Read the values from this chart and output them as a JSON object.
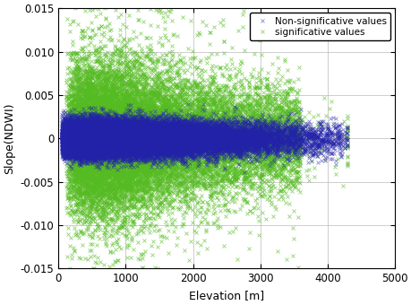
{
  "title": "",
  "xlabel": "Elevation [m]",
  "ylabel": "Slope(NDWI)",
  "xlim": [
    0,
    5000
  ],
  "ylim": [
    -0.015,
    0.015
  ],
  "xticks": [
    0,
    1000,
    2000,
    3000,
    4000,
    5000
  ],
  "yticks": [
    -0.015,
    -0.01,
    -0.005,
    0,
    0.005,
    0.01,
    0.015
  ],
  "legend_labels": [
    "Non-significative values",
    "significative values"
  ],
  "non_sig_color": "#2222aa",
  "sig_color": "#55bb22",
  "marker": "x",
  "n_nonsig": 30000,
  "n_sig": 20000,
  "seed": 42,
  "grid_color": "#bbbbbb",
  "grid_linewidth": 0.5,
  "background_color": "#ffffff"
}
